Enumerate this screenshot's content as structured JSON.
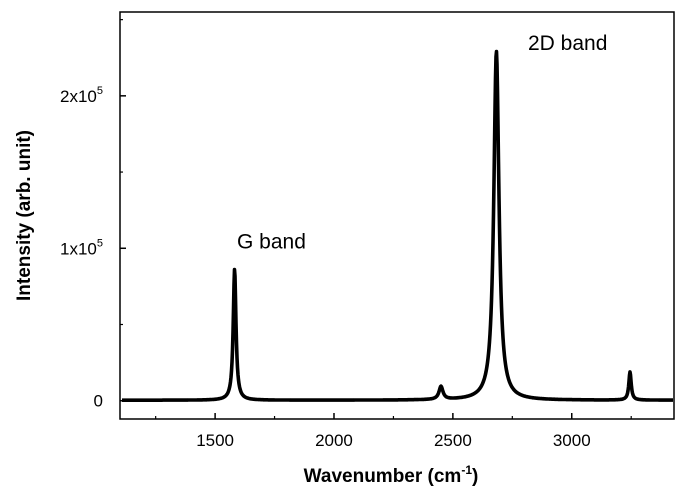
{
  "chart_data": {
    "type": "line",
    "title": "",
    "xlabel": "Wavenumber (cm",
    "xlabel_superscript": "-1",
    "xlabel_suffix": ")",
    "ylabel": "Intensity (arb. unit)",
    "xlim": [
      1100,
      3430
    ],
    "ylim": [
      -12000,
      255000
    ],
    "grid": false,
    "x_ticks": [
      {
        "value": 1500,
        "label": "1500"
      },
      {
        "value": 2000,
        "label": "2000"
      },
      {
        "value": 2500,
        "label": "2500"
      },
      {
        "value": 3000,
        "label": "3000"
      }
    ],
    "y_ticks": [
      {
        "value": 0,
        "label": "0",
        "mantissa": "",
        "exponent": ""
      },
      {
        "value": 100000,
        "label": "",
        "mantissa": "1x10",
        "exponent": "5"
      },
      {
        "value": 200000,
        "label": "",
        "mantissa": "2x10",
        "exponent": "5"
      }
    ],
    "annotations": [
      {
        "text": "G band",
        "x": 1590,
        "y": 100000
      },
      {
        "text": "2D band",
        "x": 2685,
        "y": 230000
      }
    ],
    "series": [
      {
        "baseline": 300,
        "peaks": [
          {
            "center": 1582,
            "height": 86000,
            "width": 7
          },
          {
            "center": 2450,
            "height": 8500,
            "width": 10
          },
          {
            "center": 2683,
            "height": 229000,
            "width": 13
          },
          {
            "center": 3245,
            "height": 18500,
            "width": 6
          }
        ]
      }
    ]
  }
}
